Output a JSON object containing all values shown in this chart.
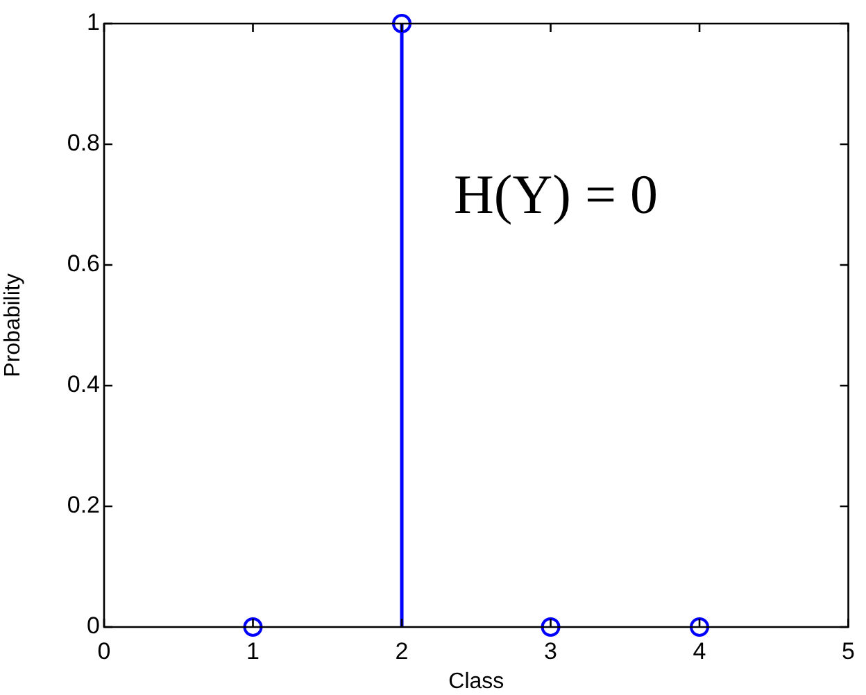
{
  "chart_data": {
    "type": "lollipop",
    "xlabel": "Class",
    "ylabel": "Probability",
    "x": [
      1,
      2,
      3,
      4
    ],
    "values": [
      0,
      1,
      0,
      0
    ],
    "color": "#0000ff",
    "xlim": [
      0,
      5
    ],
    "xticks": [
      0,
      1,
      2,
      3,
      4,
      5
    ],
    "ylim": [
      0,
      1
    ],
    "yticks": [
      0,
      0.2,
      0.4,
      0.6,
      0.8,
      1
    ],
    "marker": "circle",
    "grid": false,
    "legend": false,
    "annotations": [
      "H(Y) = 0"
    ]
  }
}
